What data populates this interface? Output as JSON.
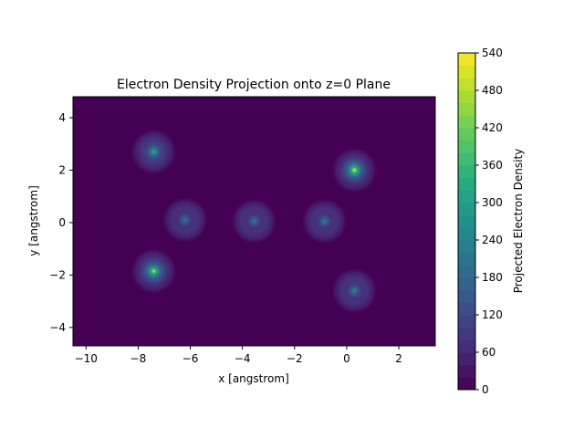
{
  "chart_data": {
    "type": "heatmap",
    "title": "Electron Density Projection onto z=0 Plane",
    "xlabel": "x [angstrom]",
    "ylabel": "y [angstrom]",
    "xlim": [
      -10.5,
      3.4
    ],
    "ylim": [
      -4.7,
      4.8
    ],
    "xticks": [
      -10,
      -8,
      -6,
      -4,
      -2,
      0,
      2
    ],
    "xtick_labels": [
      "−10",
      "−8",
      "−6",
      "−4",
      "−2",
      "0",
      "2"
    ],
    "yticks": [
      -4,
      -2,
      0,
      2,
      4
    ],
    "ytick_labels": [
      "−4",
      "−2",
      "0",
      "2",
      "4"
    ],
    "grid": false,
    "colormap": "viridis",
    "background_color": "#440154",
    "colorbar": {
      "label": "Projected Electron Density",
      "range": [
        0,
        540
      ],
      "ticks": [
        0,
        60,
        120,
        180,
        240,
        300,
        360,
        420,
        480,
        540
      ],
      "tick_labels": [
        "0",
        "60",
        "120",
        "180",
        "240",
        "300",
        "360",
        "420",
        "480",
        "540"
      ],
      "levels": 27
    },
    "peaks": [
      {
        "x": -7.4,
        "y": 2.7,
        "value": 340
      },
      {
        "x": -7.4,
        "y": -1.85,
        "value": 500
      },
      {
        "x": -6.2,
        "y": 0.1,
        "value": 230
      },
      {
        "x": -3.55,
        "y": 0.05,
        "value": 230
      },
      {
        "x": -0.85,
        "y": 0.05,
        "value": 240
      },
      {
        "x": 0.3,
        "y": 2.0,
        "value": 530
      },
      {
        "x": 0.3,
        "y": -2.6,
        "value": 260
      }
    ]
  }
}
